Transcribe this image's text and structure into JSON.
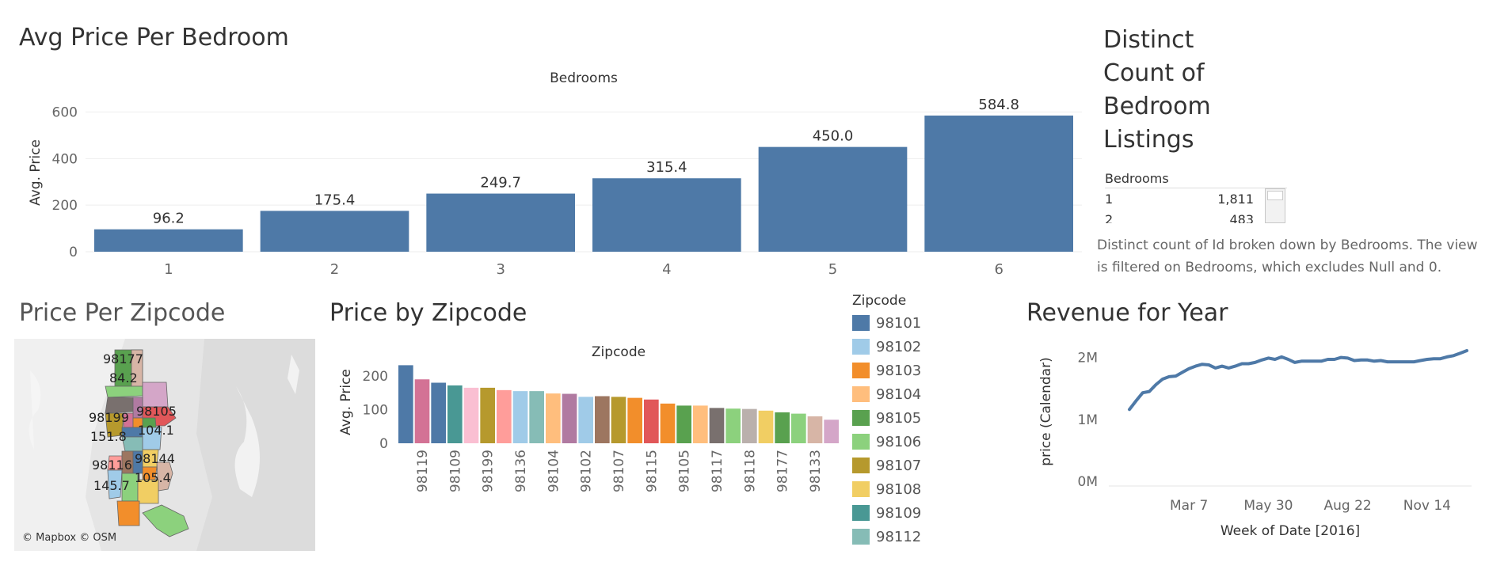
{
  "bedroom_chart": {
    "title": "Avg Price Per Bedroom",
    "header": "Bedrooms",
    "ylabel": "Avg. Price",
    "bar_color": "#4e79a7",
    "yticks": [
      "0",
      "200",
      "400",
      "600"
    ]
  },
  "distinct_panel": {
    "title_lines": [
      "Distinct",
      "Count of",
      "Bedroom",
      "Listings"
    ],
    "column_header": "Bedrooms",
    "rows": [
      {
        "bedrooms": "1",
        "count": "1,811"
      },
      {
        "bedrooms": "2",
        "count": "483"
      }
    ],
    "caption": "Distinct count of Id broken down by Bedrooms. The view is filtered on Bedrooms, which excludes Null and 0."
  },
  "map_panel": {
    "title": "Price Per Zipcode",
    "attribution": "© Mapbox © OSM",
    "labels": [
      {
        "zip": "98177",
        "value": "84.2"
      },
      {
        "zip": "98199",
        "value": "151.8"
      },
      {
        "zip": "98105",
        "value": "104.1"
      },
      {
        "zip": "98116",
        "value": "145.7"
      },
      {
        "zip": "98144",
        "value": "105.4"
      }
    ]
  },
  "zipcode_chart": {
    "title": "Price by Zipcode",
    "header": "Zipcode",
    "ylabel": "Avg. Price",
    "yticks": [
      "0",
      "100",
      "200"
    ]
  },
  "zipcode_legend": {
    "title": "Zipcode",
    "items": [
      {
        "label": "98101",
        "color": "#4e79a7"
      },
      {
        "label": "98102",
        "color": "#a0cbe8"
      },
      {
        "label": "98103",
        "color": "#f28e2b"
      },
      {
        "label": "98104",
        "color": "#ffbe7d"
      },
      {
        "label": "98105",
        "color": "#59a14f"
      },
      {
        "label": "98106",
        "color": "#8cd17d"
      },
      {
        "label": "98107",
        "color": "#b6992d"
      },
      {
        "label": "98108",
        "color": "#f1ce63"
      },
      {
        "label": "98109",
        "color": "#499894"
      },
      {
        "label": "98112",
        "color": "#86bcb6"
      }
    ]
  },
  "revenue_chart": {
    "title": "Revenue for Year",
    "ylabel": "price (Calendar)",
    "xlabel": "Week of Date [2016]",
    "line_color": "#4e79a7",
    "yticks": [
      "0M",
      "1M",
      "2M"
    ],
    "xticks": [
      "Mar 7",
      "May 30",
      "Aug 22",
      "Nov 14"
    ]
  },
  "chart_data": [
    {
      "type": "bar",
      "title": "Avg Price Per Bedroom",
      "xlabel": "Bedrooms",
      "ylabel": "Avg. Price",
      "categories": [
        "1",
        "2",
        "3",
        "4",
        "5",
        "6"
      ],
      "values": [
        96.2,
        175.4,
        249.7,
        315.4,
        450.0,
        584.8
      ],
      "value_labels": [
        "96.2",
        "175.4",
        "249.7",
        "315.4",
        "450.0",
        "584.8"
      ],
      "ylim": [
        0,
        600
      ],
      "grid": true
    },
    {
      "type": "table",
      "title": "Distinct Count of Bedroom Listings",
      "columns": [
        "Bedrooms",
        "Distinct count of Id"
      ],
      "rows": [
        [
          "1",
          1811
        ],
        [
          "2",
          483
        ]
      ]
    },
    {
      "type": "bar",
      "title": "Price by Zipcode",
      "xlabel": "Zipcode",
      "ylabel": "Avg. Price",
      "ylim": [
        0,
        250
      ],
      "categories": [
        "",
        "98119",
        "",
        "98109",
        "",
        "98199",
        "",
        "98136",
        "",
        "98104",
        "",
        "98102",
        "",
        "98107",
        "",
        "98115",
        "",
        "98105",
        "",
        "98117",
        "",
        "98118",
        "",
        "98177",
        "",
        "98133",
        ""
      ],
      "values": [
        232,
        190,
        180,
        172,
        165,
        165,
        158,
        155,
        155,
        148,
        147,
        138,
        140,
        138,
        135,
        130,
        118,
        112,
        112,
        105,
        103,
        102,
        97,
        92,
        88,
        80,
        70
      ],
      "colors": [
        "#4e79a7",
        "#d37295",
        "#4e79a7",
        "#499894",
        "#fabfd2",
        "#b6992d",
        "#ff9d9a",
        "#a0cbe8",
        "#86bcb6",
        "#ffbe7d",
        "#b07aa1",
        "#a0cbe8",
        "#9d7660",
        "#b6992d",
        "#f28e2b",
        "#e15759",
        "#f28e2b",
        "#59a14f",
        "#ffbe7d",
        "#79706e",
        "#8cd17d",
        "#bab0ac",
        "#f1ce63",
        "#59a14f",
        "#8cd17d",
        "#d7b5a6",
        "#d4a6c8"
      ]
    },
    {
      "type": "line",
      "title": "Revenue for Year",
      "xlabel": "Week of Date [2016]",
      "ylabel": "price (Calendar)",
      "x": [
        "Jan 4",
        "Jan 11",
        "Jan 18",
        "Jan 25",
        "Feb 1",
        "Feb 8",
        "Feb 15",
        "Feb 22",
        "Feb 29",
        "Mar 7",
        "Mar 14",
        "Mar 21",
        "Mar 28",
        "Apr 4",
        "Apr 11",
        "Apr 18",
        "Apr 25",
        "May 2",
        "May 9",
        "May 16",
        "May 23",
        "May 30",
        "Jun 6",
        "Jun 13",
        "Jun 20",
        "Jun 27",
        "Jul 4",
        "Jul 11",
        "Jul 18",
        "Jul 25",
        "Aug 1",
        "Aug 8",
        "Aug 15",
        "Aug 22",
        "Aug 29",
        "Sep 5",
        "Sep 12",
        "Sep 19",
        "Sep 26",
        "Oct 3",
        "Oct 10",
        "Oct 17",
        "Oct 24",
        "Oct 31",
        "Nov 7",
        "Nov 14",
        "Nov 21",
        "Nov 28",
        "Dec 5",
        "Dec 12",
        "Dec 19",
        "Dec 26"
      ],
      "values": [
        1.16,
        1.3,
        1.43,
        1.45,
        1.56,
        1.65,
        1.69,
        1.7,
        1.76,
        1.82,
        1.86,
        1.89,
        1.88,
        1.83,
        1.86,
        1.83,
        1.86,
        1.9,
        1.9,
        1.92,
        1.96,
        1.99,
        1.97,
        2.01,
        1.97,
        1.92,
        1.94,
        1.94,
        1.94,
        1.94,
        1.97,
        1.97,
        2.0,
        1.99,
        1.95,
        1.96,
        1.96,
        1.94,
        1.95,
        1.93,
        1.93,
        1.93,
        1.93,
        1.93,
        1.95,
        1.97,
        1.98,
        1.98,
        2.01,
        2.03,
        2.07,
        2.11
      ],
      "ylim": [
        0,
        2.2
      ],
      "yunit": "M",
      "grid": false
    }
  ]
}
